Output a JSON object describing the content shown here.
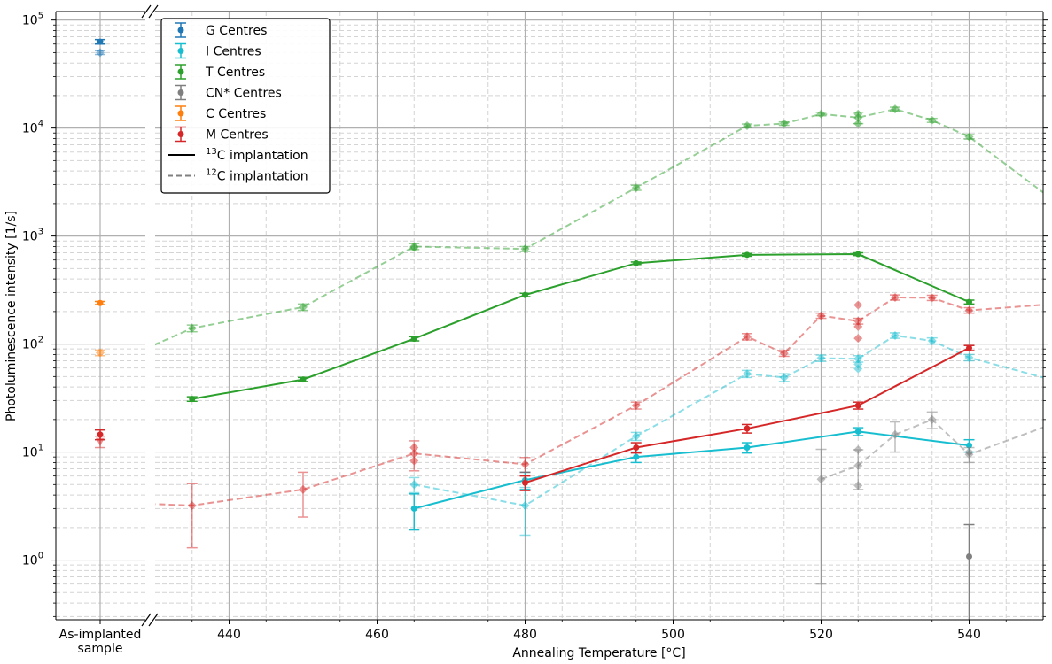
{
  "chart_data": {
    "type": "line",
    "xlabel": "Annealing Temperature [°C]",
    "ylabel": "Photoluminescence intensity [1/s]",
    "yscale": "log",
    "ylim": [
      0.28,
      120000
    ],
    "xlim": [
      430,
      550
    ],
    "grid": true,
    "legend_position": "top-left",
    "broken_axis_category": "As-implanted\nsample",
    "x_ticks": [
      440,
      460,
      480,
      500,
      520,
      540
    ],
    "y_ticks": [
      {
        "value": 1,
        "label": "10",
        "exp": "0"
      },
      {
        "value": 10,
        "label": "10",
        "exp": "1"
      },
      {
        "value": 100,
        "label": "10",
        "exp": "2"
      },
      {
        "value": 1000,
        "label": "10",
        "exp": "3"
      },
      {
        "value": 10000,
        "label": "10",
        "exp": "4"
      },
      {
        "value": 100000,
        "label": "10",
        "exp": "5"
      }
    ],
    "legend": [
      {
        "label": "G Centres",
        "color": "#1f77b4",
        "kind": "errorbar"
      },
      {
        "label": "I Centres",
        "color": "#17becf",
        "kind": "errorbar"
      },
      {
        "label": "T Centres",
        "color": "#2ca02c",
        "kind": "errorbar"
      },
      {
        "label": "CN* Centres",
        "color": "#7f7f7f",
        "kind": "errorbar"
      },
      {
        "label": "C Centres",
        "color": "#ff7f0e",
        "kind": "errorbar"
      },
      {
        "label": "M Centres",
        "color": "#d62728",
        "kind": "errorbar"
      },
      {
        "label_main": "C implantation",
        "label_sup": "13",
        "color": "#000000",
        "kind": "solid"
      },
      {
        "label_main": "C implantation",
        "label_sup": "12",
        "color": "#7f7f7f",
        "kind": "dashed"
      }
    ],
    "as_implanted": [
      {
        "name": "G Centres",
        "color": "#1f77b4",
        "points": [
          {
            "y": 63000,
            "err": 3000,
            "alpha": 1
          },
          {
            "y": 50000,
            "err": 2000,
            "alpha": 0.5
          }
        ]
      },
      {
        "name": "C Centres",
        "color": "#ff7f0e",
        "points": [
          {
            "y": 240,
            "err": 8,
            "alpha": 1
          },
          {
            "y": 83,
            "err": 5,
            "alpha": 0.5
          }
        ]
      },
      {
        "name": "M Centres",
        "color": "#d62728",
        "points": [
          {
            "y": 14.5,
            "err": 1.5,
            "alpha": 1
          },
          {
            "y": 12.5,
            "err": 1.5,
            "alpha": 0.5
          }
        ]
      }
    ],
    "series": [
      {
        "name": "T Centres",
        "isotope": "13C",
        "color": "#2ca02c",
        "style": "solid",
        "alpha": 1,
        "x": [
          435,
          450,
          465,
          480,
          495,
          510,
          525,
          540
        ],
        "y": [
          31,
          47,
          112,
          285,
          560,
          670,
          680,
          245
        ],
        "err": [
          1.5,
          2,
          5,
          10,
          15,
          20,
          20,
          10
        ]
      },
      {
        "name": "T Centres",
        "isotope": "12C",
        "color": "#2ca02c",
        "style": "dashed",
        "alpha": 0.5,
        "x": [
          425,
          435,
          450,
          465,
          480,
          495,
          510,
          515,
          520,
          525,
          530,
          535,
          540,
          555
        ],
        "y": [
          70,
          140,
          220,
          800,
          760,
          2800,
          10500,
          11000,
          13500,
          12500,
          15000,
          11800,
          8300,
          1400
        ],
        "err": [
          0,
          10,
          15,
          50,
          40,
          150,
          400,
          400,
          500,
          1500,
          600,
          500,
          400,
          0
        ],
        "scatter": [
          {
            "x": 465,
            "y": 780
          },
          {
            "x": 525,
            "y": 13500
          },
          {
            "x": 525,
            "y": 11000
          }
        ]
      },
      {
        "name": "I Centres",
        "isotope": "13C",
        "color": "#17becf",
        "style": "solid",
        "alpha": 1,
        "x": [
          465,
          480,
          495,
          510,
          525,
          540
        ],
        "y": [
          3.0,
          5.5,
          9.0,
          11,
          15.5,
          11.5
        ],
        "err": [
          1.1,
          1.0,
          1.0,
          1.2,
          1.3,
          1.5
        ]
      },
      {
        "name": "I Centres",
        "isotope": "12C",
        "color": "#17becf",
        "style": "dashed",
        "alpha": 0.5,
        "x": [
          465,
          480,
          495,
          510,
          515,
          520,
          525,
          530,
          535,
          540,
          560
        ],
        "y": [
          5.0,
          3.2,
          14,
          53,
          49,
          74,
          73,
          120,
          107,
          75,
          32
        ],
        "err": [
          0.8,
          1.5,
          1.2,
          4,
          4,
          5,
          5,
          7,
          7,
          5,
          0
        ],
        "scatter": [
          {
            "x": 525,
            "y": 65
          },
          {
            "x": 525,
            "y": 59
          }
        ]
      },
      {
        "name": "M Centres",
        "isotope": "13C",
        "color": "#d62728",
        "style": "solid",
        "alpha": 1,
        "x": [
          480,
          495,
          510,
          525,
          540
        ],
        "y": [
          5.2,
          11,
          16.5,
          27,
          92
        ],
        "err": [
          0.8,
          1.2,
          1.5,
          2,
          5
        ]
      },
      {
        "name": "M Centres",
        "isotope": "12C",
        "color": "#d62728",
        "style": "dashed",
        "alpha": 0.5,
        "x": [
          420,
          435,
          450,
          465,
          480,
          495,
          510,
          515,
          520,
          525,
          530,
          535,
          540,
          560
        ],
        "y": [
          3.5,
          3.2,
          4.5,
          9.7,
          7.7,
          27,
          117,
          82,
          183,
          163,
          270,
          268,
          205,
          260
        ],
        "err": [
          0,
          1.9,
          2.0,
          3,
          1.2,
          2,
          8,
          5,
          10,
          10,
          15,
          15,
          12,
          0
        ],
        "scatter": [
          {
            "x": 465,
            "y": 11
          },
          {
            "x": 465,
            "y": 8.3
          },
          {
            "x": 525,
            "y": 230
          },
          {
            "x": 525,
            "y": 145
          },
          {
            "x": 525,
            "y": 113
          }
        ]
      },
      {
        "name": "CN* Centres",
        "isotope": "13C",
        "color": "#7f7f7f",
        "style": "solid",
        "alpha": 1,
        "x": [
          540
        ],
        "y": [
          1.08
        ],
        "err": [
          1.05
        ]
      },
      {
        "name": "CN* Centres",
        "isotope": "12C",
        "color": "#7f7f7f",
        "style": "dashed",
        "alpha": 0.5,
        "x": [
          520,
          525,
          530,
          535,
          540,
          560
        ],
        "y": [
          5.6,
          7.5,
          14.5,
          20,
          9.5,
          30
        ],
        "err": [
          5.0,
          3.0,
          4.5,
          3.5,
          1.5,
          0
        ],
        "scatter": [
          {
            "x": 525,
            "y": 10.5
          },
          {
            "x": 525,
            "y": 4.9
          },
          {
            "x": 540,
            "y": 10
          }
        ]
      }
    ]
  }
}
